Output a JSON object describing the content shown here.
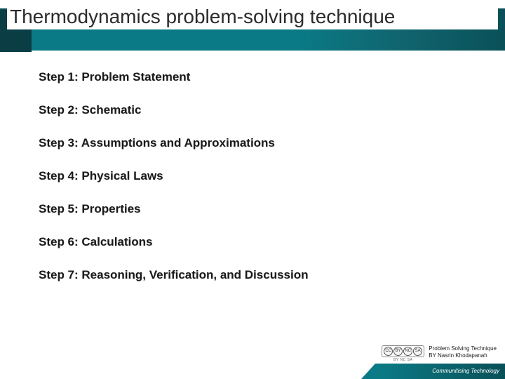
{
  "title": "Thermodynamics problem-solving technique",
  "steps": [
    "Step 1: Problem Statement",
    "Step 2: Schematic",
    "Step 3: Assumptions and Approximations",
    "Step 4: Physical Laws",
    "Step 5: Properties",
    "Step 6: Calculations",
    "Step 7: Reasoning, Verification, and Discussion"
  ],
  "attribution": {
    "line1": "Problem Solving Technique",
    "line2": "BY Nasrin Khodapanah"
  },
  "cc": {
    "p1": "CC",
    "p2": "BY",
    "p3": "NC",
    "p4": "SA",
    "label": "BY  NC  SA"
  },
  "footer_tag": "Communitising Technology",
  "colors": {
    "teal_main": "#0a7b86",
    "teal_dark": "#0a5058",
    "text": "#1a1a1a",
    "bg": "#ffffff"
  }
}
